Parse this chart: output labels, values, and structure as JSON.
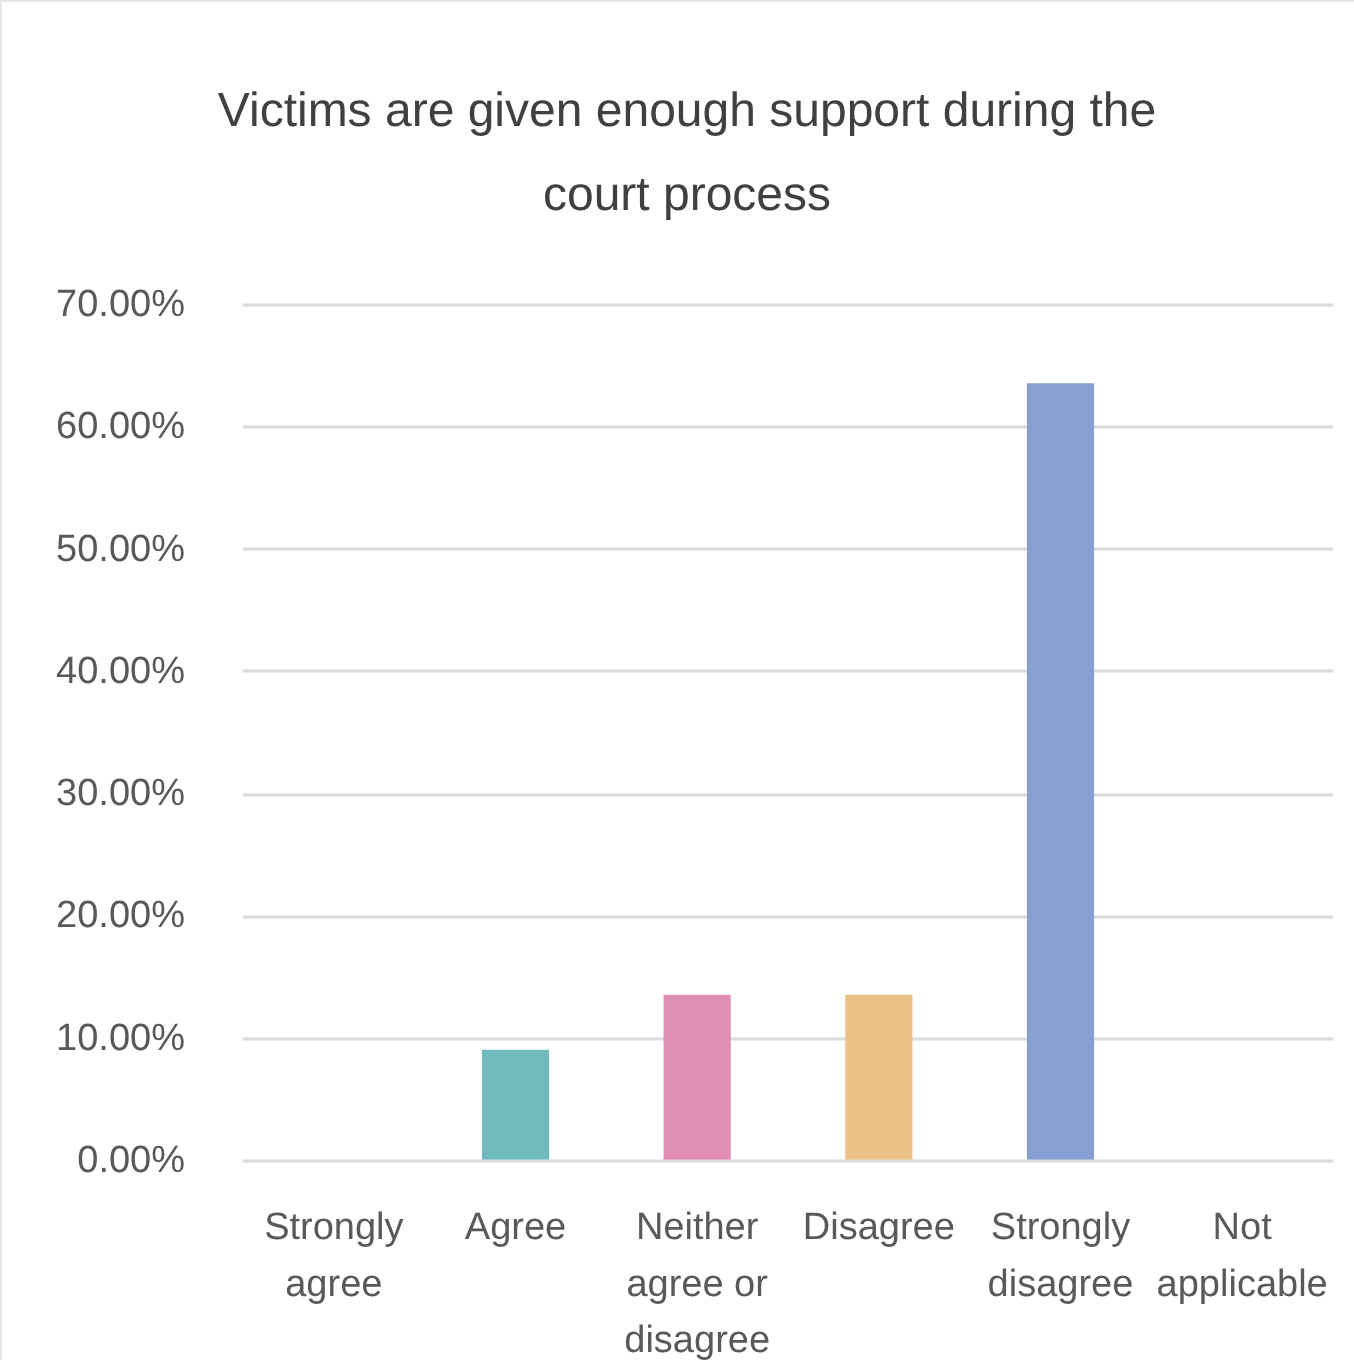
{
  "chart_data": {
    "type": "bar",
    "title": "Victims are given enough support during the court process",
    "categories": [
      "Strongly agree",
      "Agree",
      "Neither agree or disagree",
      "Disagree",
      "Strongly disagree",
      "Not applicable"
    ],
    "values": [
      0,
      9.1,
      13.6,
      13.6,
      63.6,
      0
    ],
    "colors": [
      "#70bcbc",
      "#70bcbc",
      "#e08eb5",
      "#ecc287",
      "#879fd2",
      "#879fd2"
    ],
    "ylim": [
      0,
      70
    ],
    "yticks": [
      {
        "value": 0,
        "label": "0.00%"
      },
      {
        "value": 10,
        "label": "10.00%"
      },
      {
        "value": 20,
        "label": "20.00%"
      },
      {
        "value": 30,
        "label": "30.00%"
      },
      {
        "value": 40,
        "label": "40.00%"
      },
      {
        "value": 50,
        "label": "50.00%"
      },
      {
        "value": 60,
        "label": "60.00%"
      },
      {
        "value": 70,
        "label": "70.00%"
      }
    ],
    "grid": "y",
    "legend": false
  }
}
